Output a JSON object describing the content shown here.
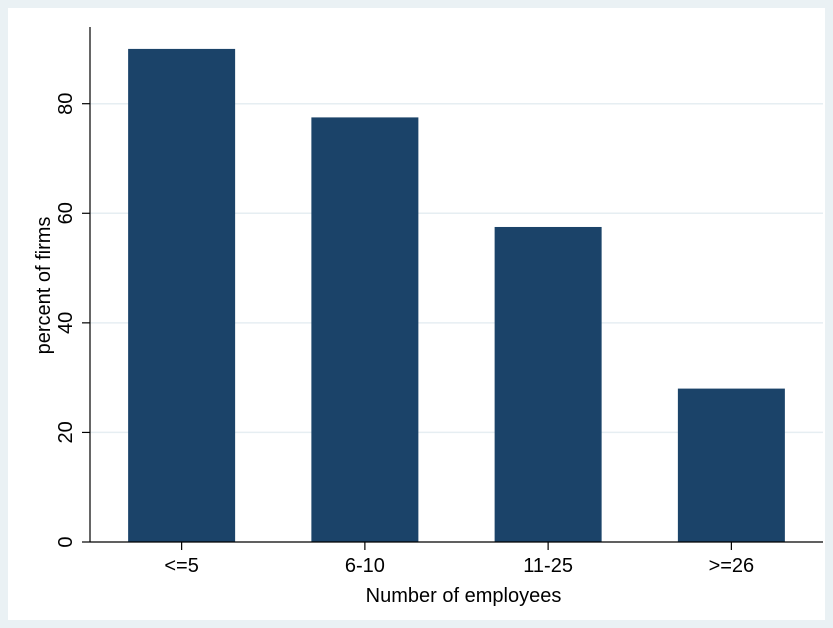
{
  "chart_data": {
    "type": "bar",
    "categories": [
      "<=5",
      "6-10",
      "11-25",
      ">=26"
    ],
    "values": [
      90,
      77.5,
      57.5,
      28
    ],
    "title": "",
    "xlabel": "Number of employees",
    "ylabel": "percent of firms",
    "ylim": [
      0,
      94
    ],
    "yticks": [
      0,
      20,
      40,
      60,
      80
    ],
    "grid": true,
    "legend": "none",
    "colors": {
      "bar": "#1b4369",
      "outer_background": "#eaf1f4",
      "plot_background": "#ffffff",
      "gridline": "#e6eef2"
    }
  }
}
